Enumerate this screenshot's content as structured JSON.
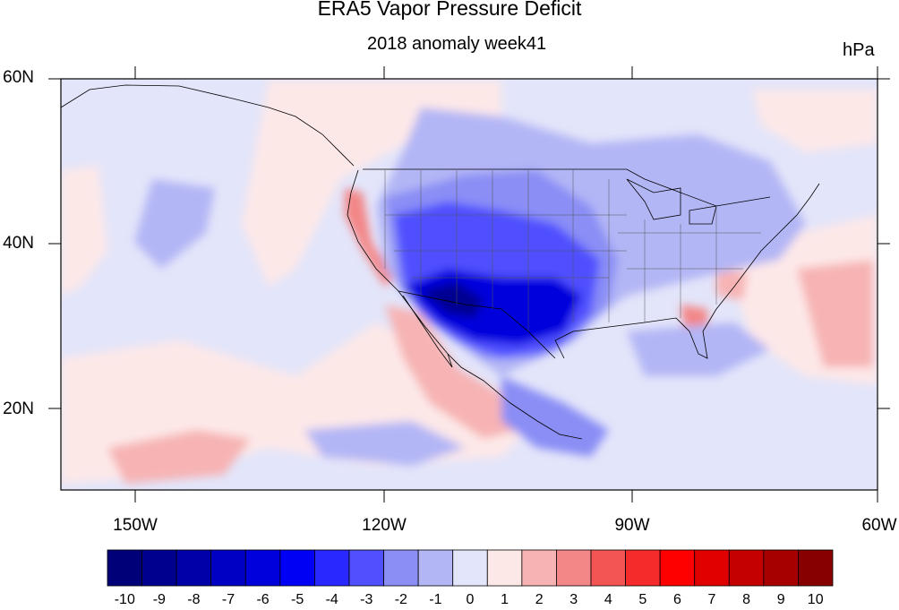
{
  "title": "ERA5 Vapor Pressure Deficit",
  "subtitle": "2018 anomaly week41",
  "units": "hPa",
  "lat_ticks": [
    "60N",
    "40N",
    "20N"
  ],
  "lon_ticks": [
    "150W",
    "120W",
    "90W",
    "60W"
  ],
  "colorbar": {
    "labels": [
      "-10",
      "-9",
      "-8",
      "-7",
      "-6",
      "-5",
      "-4",
      "-3",
      "-2",
      "-1",
      "0",
      "1",
      "2",
      "3",
      "4",
      "5",
      "6",
      "7",
      "8",
      "9",
      "10"
    ],
    "colors": [
      "#000078",
      "#00008f",
      "#0000a8",
      "#0000c4",
      "#0000dd",
      "#0000f5",
      "#2828ff",
      "#5050ff",
      "#8a8ef5",
      "#b3b6f5",
      "#e3e5fa",
      "#fde8e8",
      "#f7b3b3",
      "#f38686",
      "#f35555",
      "#f52a2a",
      "#ff0000",
      "#e00000",
      "#c40000",
      "#a60000",
      "#870000"
    ]
  },
  "axes": {
    "lon_min": -160,
    "lon_max": -60,
    "lat_min": 10,
    "lat_max": 60
  }
}
